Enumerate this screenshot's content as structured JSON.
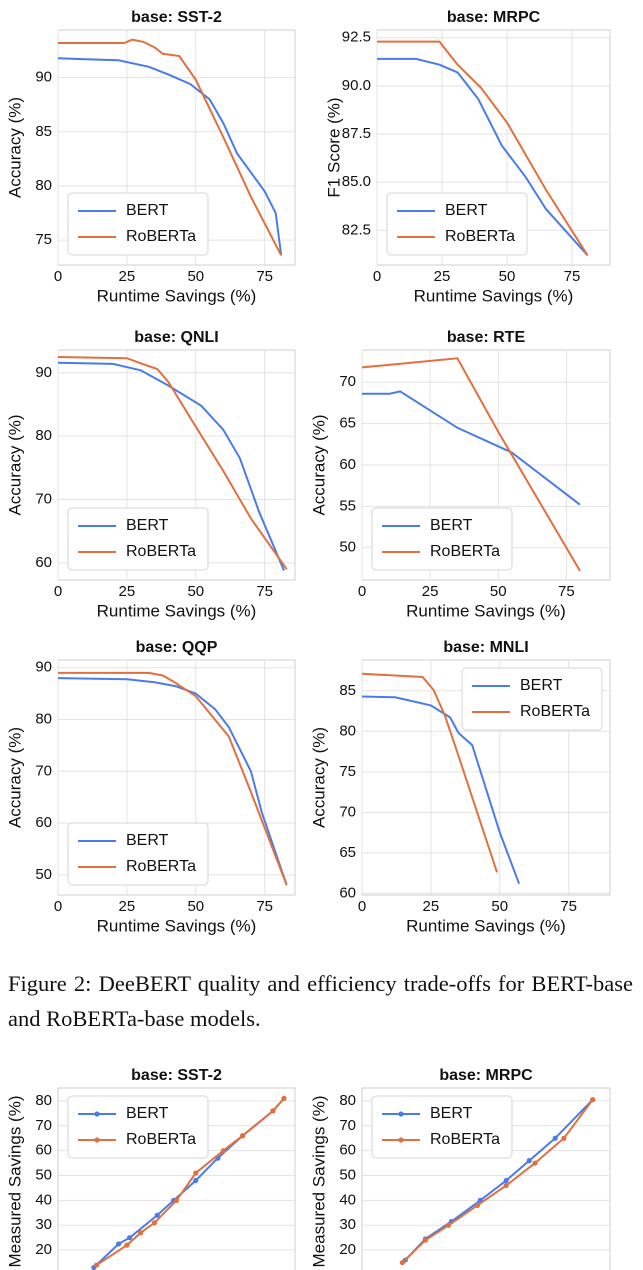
{
  "chart_data": [
    {
      "type": "line",
      "title": "base: SST-2",
      "xlabel": "Runtime Savings (%)",
      "ylabel": "Accuracy (%)",
      "xlim": [
        0,
        86
      ],
      "xticks": [
        0,
        25,
        50,
        75
      ],
      "ylim": [
        72.7,
        94.4
      ],
      "yticks": [
        75,
        80,
        85,
        90
      ],
      "grid": true,
      "legend": "lower left",
      "series": [
        {
          "name": "BERT",
          "color": "#4a7bea",
          "x": [
            0,
            10,
            22,
            33,
            40,
            48,
            55,
            60,
            65,
            75,
            79,
            81
          ],
          "values": [
            91.8,
            91.7,
            91.6,
            91.0,
            90.3,
            89.4,
            88.0,
            85.8,
            83.0,
            79.5,
            77.5,
            73.6
          ]
        },
        {
          "name": "RoBERTa",
          "color": "#e2703e",
          "x": [
            0,
            24,
            27,
            31,
            35,
            38,
            44,
            50,
            60,
            70,
            81
          ],
          "values": [
            93.2,
            93.2,
            93.5,
            93.3,
            92.8,
            92.2,
            92.0,
            89.8,
            84.5,
            79.0,
            73.6
          ]
        }
      ]
    },
    {
      "type": "line",
      "title": "base: MRPC",
      "xlabel": "Runtime Savings (%)",
      "ylabel": "F1 Score (%)",
      "xlim": [
        0,
        89.6
      ],
      "xticks": [
        0,
        25,
        50,
        75
      ],
      "ylim": [
        80.7,
        92.9
      ],
      "yticks": [
        82.5,
        {
          "value": 85,
          "label": "85.0"
        },
        87.5,
        {
          "value": 90,
          "label": "90.0"
        },
        92.5
      ],
      "grid": true,
      "legend": "lower left",
      "series": [
        {
          "name": "BERT",
          "color": "#4a7bea",
          "x": [
            0,
            15,
            24,
            31,
            39,
            48,
            57,
            65,
            81
          ],
          "values": [
            91.4,
            91.4,
            91.1,
            90.7,
            89.3,
            86.9,
            85.3,
            83.6,
            81.2
          ]
        },
        {
          "name": "RoBERTa",
          "color": "#e2703e",
          "x": [
            0,
            24,
            31,
            40,
            50,
            65,
            81
          ],
          "values": [
            92.3,
            92.3,
            91.1,
            89.9,
            88.1,
            84.6,
            81.2
          ]
        }
      ]
    },
    {
      "type": "line",
      "title": "base: QNLI",
      "xlabel": "Runtime Savings (%)",
      "ylabel": "Accuracy (%)",
      "xlim": [
        0,
        86
      ],
      "xticks": [
        0,
        25,
        50,
        75
      ],
      "ylim": [
        57.3,
        93.6
      ],
      "yticks": [
        60,
        70,
        80,
        90
      ],
      "grid": true,
      "legend": "lower left",
      "series": [
        {
          "name": "BERT",
          "color": "#4a7bea",
          "x": [
            0,
            20,
            30,
            40,
            52,
            60,
            66,
            73,
            82
          ],
          "values": [
            91.6,
            91.4,
            90.4,
            88.0,
            84.8,
            81.0,
            76.5,
            68.0,
            58.8
          ]
        },
        {
          "name": "RoBERTa",
          "color": "#e2703e",
          "x": [
            0,
            25,
            30,
            36,
            40,
            50,
            60,
            70,
            83
          ],
          "values": [
            92.5,
            92.3,
            91.5,
            90.6,
            88.6,
            81.5,
            74.5,
            67.0,
            59.0
          ]
        }
      ]
    },
    {
      "type": "line",
      "title": "base: RTE",
      "xlabel": "Runtime Savings (%)",
      "ylabel": "Accuracy (%)",
      "xlim": [
        0,
        91
      ],
      "xticks": [
        0,
        25,
        50,
        75
      ],
      "ylim": [
        46.1,
        73.9
      ],
      "yticks": [
        50,
        55,
        60,
        65,
        70
      ],
      "grid": true,
      "legend": "lower left",
      "series": [
        {
          "name": "BERT",
          "color": "#4a7bea",
          "x": [
            0,
            10,
            14,
            35,
            55,
            80
          ],
          "values": [
            68.6,
            68.6,
            68.9,
            64.5,
            61.5,
            55.2
          ]
        },
        {
          "name": "RoBERTa",
          "color": "#e2703e",
          "x": [
            0,
            35,
            50,
            80
          ],
          "values": [
            71.8,
            72.9,
            64.0,
            47.2
          ]
        }
      ]
    },
    {
      "type": "line",
      "title": "base: QQP",
      "xlabel": "Runtime Savings (%)",
      "ylabel": "Accuracy (%)",
      "xlim": [
        0,
        86
      ],
      "xticks": [
        0,
        25,
        50,
        75
      ],
      "ylim": [
        46.1,
        91.5
      ],
      "yticks": [
        50,
        60,
        70,
        80,
        90
      ],
      "grid": true,
      "legend": "lower left",
      "series": [
        {
          "name": "BERT",
          "color": "#4a7bea",
          "x": [
            0,
            25,
            35,
            43,
            50,
            57,
            62,
            70,
            74,
            83
          ],
          "values": [
            88.0,
            87.8,
            87.2,
            86.4,
            85.0,
            82.0,
            78.5,
            70.0,
            62.0,
            48.0
          ]
        },
        {
          "name": "RoBERTa",
          "color": "#e2703e",
          "x": [
            0,
            33,
            38,
            42,
            50,
            62,
            70,
            83
          ],
          "values": [
            89.0,
            89.0,
            88.5,
            87.3,
            84.5,
            76.7,
            66.0,
            48.0
          ]
        }
      ]
    },
    {
      "type": "line",
      "title": "base: MNLI",
      "xlabel": "Runtime Savings (%)",
      "ylabel": "Accuracy (%)",
      "xlim": [
        0,
        90
      ],
      "xticks": [
        0,
        25,
        50,
        75
      ],
      "ylim": [
        59.8,
        88.8
      ],
      "yticks": [
        60,
        65,
        70,
        75,
        80,
        85
      ],
      "grid": true,
      "legend": "upper right",
      "series": [
        {
          "name": "BERT",
          "color": "#4a7bea",
          "x": [
            0,
            12,
            25,
            32,
            35,
            40,
            50,
            57
          ],
          "values": [
            84.3,
            84.2,
            83.2,
            81.7,
            79.8,
            78.3,
            67.5,
            61.2
          ]
        },
        {
          "name": "RoBERTa",
          "color": "#e2703e",
          "x": [
            0,
            22,
            26,
            30,
            35,
            49
          ],
          "values": [
            87.1,
            86.7,
            85.1,
            82.0,
            77.0,
            62.6
          ]
        }
      ]
    },
    {
      "type": "line",
      "title": "base: SST-2",
      "ylabel": "Measured Savings (%)",
      "xlim": [
        0,
        86
      ],
      "ylim": [
        10,
        85.2
      ],
      "yticks": [
        20,
        30,
        40,
        50,
        60,
        70,
        80
      ],
      "grid": true,
      "legend": "upper left",
      "markers": true,
      "series": [
        {
          "name": "BERT",
          "color": "#4a7bea",
          "x": [
            13,
            22,
            26,
            36,
            42,
            50,
            58,
            67,
            78,
            82
          ],
          "values": [
            13,
            22.5,
            25,
            34,
            40,
            48,
            57,
            66,
            76,
            81
          ]
        },
        {
          "name": "RoBERTa",
          "color": "#e2703e",
          "x": [
            14,
            25,
            30,
            35,
            43,
            50,
            60,
            67,
            78,
            82
          ],
          "values": [
            14,
            22,
            27,
            31,
            40,
            51,
            60,
            66,
            76,
            81
          ]
        }
      ]
    },
    {
      "type": "line",
      "title": "base: MRPC",
      "ylabel": "Measured Savings (%)",
      "xlim": [
        0,
        86
      ],
      "ylim": [
        10,
        85.2
      ],
      "yticks": [
        20,
        30,
        40,
        50,
        60,
        70,
        80
      ],
      "grid": true,
      "legend": "upper left",
      "markers": true,
      "series": [
        {
          "name": "BERT",
          "color": "#4a7bea",
          "x": [
            15,
            22,
            31,
            41,
            50,
            58,
            67,
            80
          ],
          "values": [
            16,
            24.5,
            31.5,
            40,
            48,
            56,
            65,
            80.5
          ]
        },
        {
          "name": "RoBERTa",
          "color": "#e2703e",
          "x": [
            14,
            22,
            30,
            40,
            50,
            60,
            70,
            80
          ],
          "values": [
            15,
            24,
            30,
            38,
            46,
            55,
            65,
            80.5
          ]
        }
      ]
    }
  ],
  "caption": "Figure 2: DeeBERT quality and efficiency trade-offs for BERT-base and RoBERTa-base models."
}
